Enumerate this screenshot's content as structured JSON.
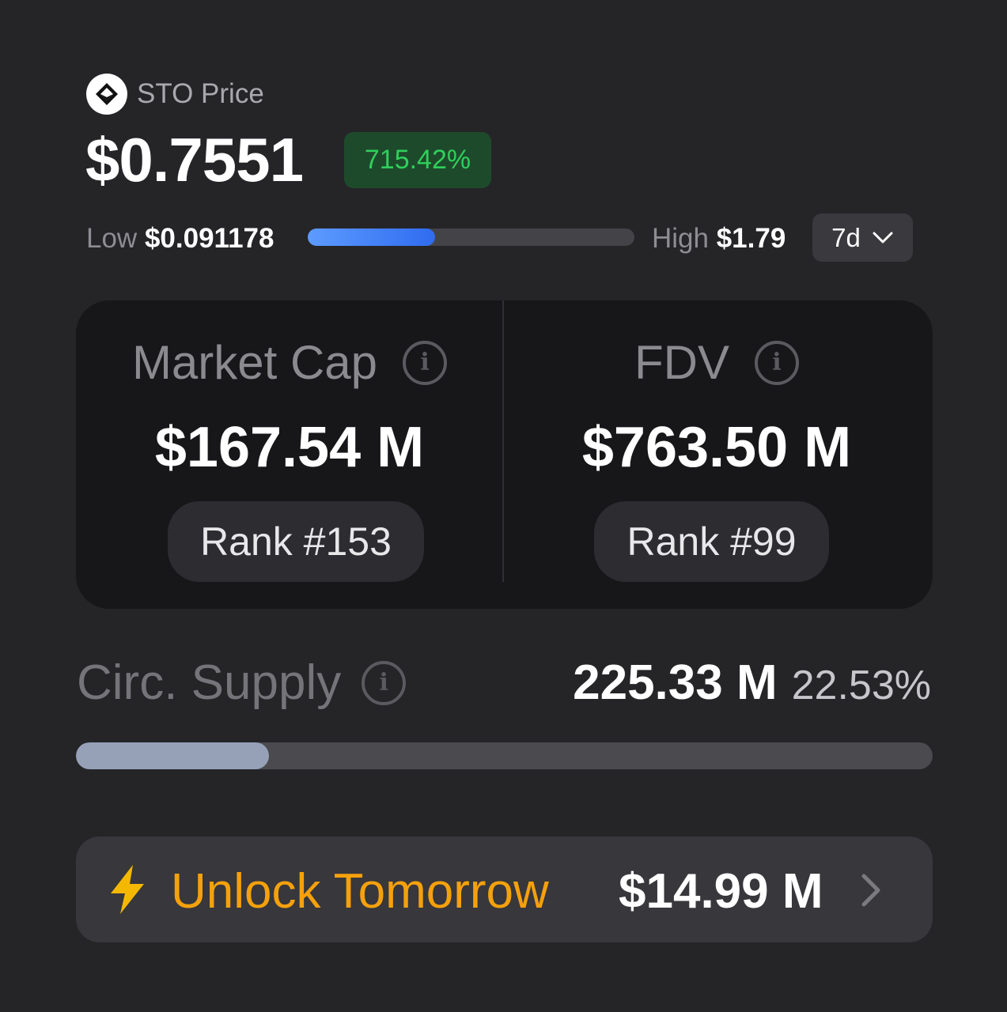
{
  "header": {
    "token_logo_icon": "sto-token-icon",
    "token_label": "STO Price",
    "price": "$0.7551",
    "change_pct": "715.42%",
    "colors": {
      "positive": "#2fcf5b",
      "positive_bg": "#1e4a2c"
    }
  },
  "range": {
    "low_label": "Low",
    "low_value": "$0.091178",
    "high_label": "High",
    "high_value": "$1.79",
    "current_fraction": 0.39,
    "period": "7d",
    "period_icon": "chevron-down-icon"
  },
  "stats": {
    "market_cap": {
      "label": "Market Cap",
      "value": "$167.54 M",
      "rank": "Rank #153",
      "info_icon": "info-icon"
    },
    "fdv": {
      "label": "FDV",
      "value": "$763.50 M",
      "rank": "Rank #99",
      "info_icon": "info-icon"
    }
  },
  "supply": {
    "label": "Circ. Supply",
    "value": "225.33 M",
    "pct": "22.53%",
    "fraction": 0.2253,
    "info_icon": "info-icon"
  },
  "unlock": {
    "icon": "lightning-bolt-icon",
    "label": "Unlock Tomorrow",
    "amount": "$14.99 M",
    "arrow_icon": "chevron-right-icon",
    "accent": "#f5a10c"
  }
}
